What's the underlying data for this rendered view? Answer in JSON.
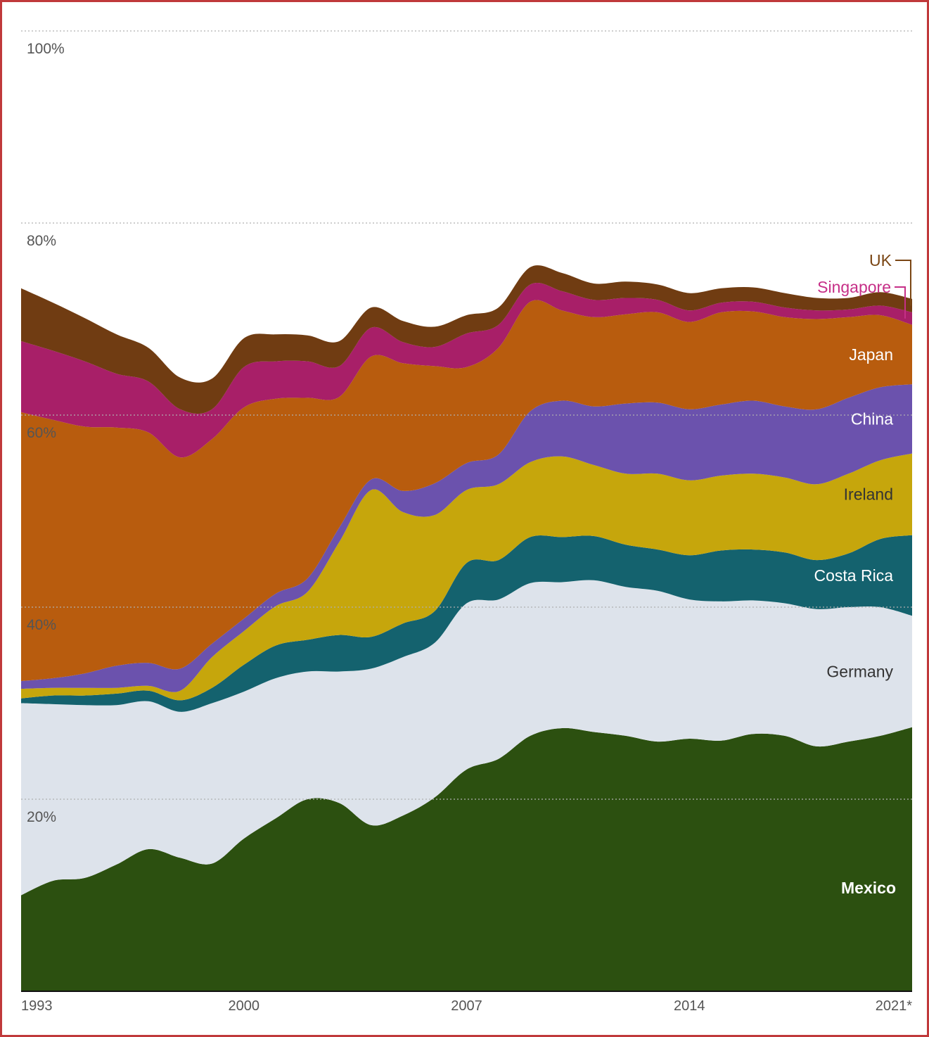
{
  "chart_data": {
    "type": "area",
    "stacked": true,
    "x": [
      1993,
      1994,
      1995,
      1996,
      1997,
      1998,
      1999,
      2000,
      2001,
      2002,
      2003,
      2004,
      2005,
      2006,
      2007,
      2008,
      2009,
      2010,
      2011,
      2012,
      2013,
      2014,
      2015,
      2016,
      2017,
      2018,
      2019,
      2020,
      2021
    ],
    "xticks": [
      "1993",
      "2000",
      "2007",
      "2014",
      "2021*"
    ],
    "yticks": [
      "20%",
      "40%",
      "60%",
      "80%",
      "100%"
    ],
    "ylim": [
      0,
      100
    ],
    "grid": true,
    "series": [
      {
        "name": "Mexico",
        "color": "#2c5010",
        "label_color": "#ffffff",
        "values": [
          10.0,
          11.5,
          11.8,
          13.2,
          14.8,
          13.9,
          13.3,
          15.9,
          18.0,
          20.0,
          19.6,
          17.3,
          18.3,
          20.2,
          23.1,
          24.2,
          26.6,
          27.4,
          27.0,
          26.6,
          26.0,
          26.3,
          26.1,
          26.8,
          26.6,
          25.5,
          26.0,
          26.6,
          27.5
        ]
      },
      {
        "name": "Germany",
        "color": "#dde3eb",
        "label_color": "#333333",
        "values": [
          20.0,
          18.4,
          18.0,
          16.6,
          15.4,
          15.2,
          16.7,
          15.3,
          14.6,
          13.3,
          13.7,
          16.3,
          16.5,
          16.1,
          17.3,
          16.6,
          15.9,
          15.2,
          15.8,
          15.5,
          15.7,
          14.5,
          14.5,
          13.9,
          13.8,
          14.3,
          14.0,
          13.4,
          11.6
        ]
      },
      {
        "name": "Costa Rica",
        "color": "#14626e",
        "label_color": "#ffffff",
        "values": [
          0.5,
          0.9,
          1.0,
          1.2,
          1.1,
          1.2,
          1.6,
          2.8,
          3.4,
          3.3,
          3.8,
          3.3,
          3.5,
          3.3,
          4.2,
          4.1,
          4.8,
          4.7,
          4.6,
          4.4,
          4.3,
          4.6,
          5.3,
          5.3,
          5.3,
          5.1,
          5.6,
          7.1,
          8.4
        ]
      },
      {
        "name": "Ireland",
        "color": "#c6a60c",
        "label_color": "#333333",
        "values": [
          1.0,
          0.8,
          0.8,
          0.6,
          0.5,
          1.0,
          3.2,
          3.5,
          4.1,
          5.0,
          9.7,
          15.3,
          11.6,
          10.0,
          7.6,
          7.9,
          7.8,
          8.4,
          7.4,
          7.4,
          7.9,
          7.8,
          7.8,
          7.9,
          7.8,
          7.9,
          8.3,
          8.2,
          8.5
        ]
      },
      {
        "name": "China",
        "color": "#6b52ad",
        "label_color": "#ffffff",
        "values": [
          0.8,
          1.0,
          1.5,
          2.3,
          2.4,
          2.3,
          1.4,
          1.3,
          1.3,
          1.4,
          1.5,
          1.1,
          2.2,
          3.3,
          2.8,
          3.1,
          5.3,
          5.8,
          6.1,
          7.3,
          7.4,
          7.4,
          7.4,
          7.6,
          7.4,
          7.8,
          7.9,
          7.6,
          7.2
        ]
      },
      {
        "name": "Japan",
        "color": "#b85c0e",
        "label_color": "#ffffff",
        "values": [
          28.0,
          26.9,
          25.7,
          24.8,
          24.0,
          22.0,
          21.3,
          22.0,
          20.3,
          18.8,
          13.6,
          12.8,
          13.3,
          12.2,
          10.0,
          11.1,
          11.4,
          9.4,
          9.3,
          9.3,
          9.4,
          9.1,
          9.6,
          9.3,
          9.3,
          9.4,
          8.4,
          7.5,
          6.2
        ]
      },
      {
        "name": "Singapore",
        "color": "#a81f68",
        "label_color": "#c62f87",
        "values": [
          7.4,
          7.2,
          6.8,
          5.6,
          5.3,
          5.0,
          3.1,
          4.2,
          3.9,
          3.8,
          3.2,
          3.0,
          2.2,
          2.0,
          3.5,
          2.4,
          1.8,
          2.0,
          1.8,
          1.7,
          1.3,
          1.2,
          1.0,
          1.0,
          1.0,
          0.9,
          0.8,
          1.0,
          1.3
        ]
      },
      {
        "name": "UK",
        "color": "#703c12",
        "label_color": "#7a4614",
        "values": [
          5.5,
          5.0,
          4.5,
          4.1,
          3.5,
          3.3,
          3.2,
          3.0,
          2.8,
          2.7,
          2.6,
          2.1,
          2.2,
          2.1,
          1.9,
          1.8,
          1.8,
          1.9,
          1.7,
          1.7,
          1.6,
          1.8,
          1.5,
          1.5,
          1.5,
          1.3,
          1.2,
          1.4,
          1.4
        ]
      }
    ]
  },
  "colors": {
    "frame": "#c0393b",
    "grid": "#b0b0b0",
    "axis": "#111111",
    "tick": "#555555"
  }
}
